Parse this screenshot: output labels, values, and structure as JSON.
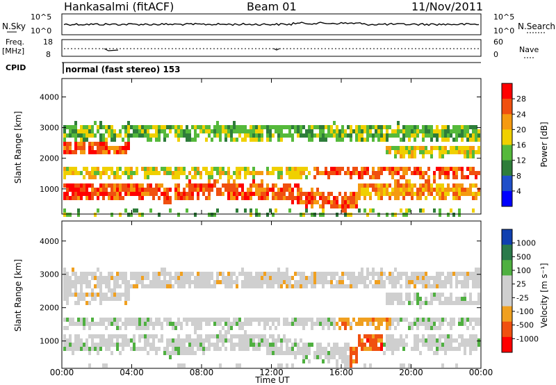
{
  "header": {
    "station": "Hankasalmi (fitACF)",
    "beam": "Beam 01",
    "date": "11/Nov/2011"
  },
  "strips": {
    "nsky": {
      "label": "N.Sky",
      "ticks": [
        "10^5",
        "10^0"
      ],
      "right_ticks": [
        "10^5",
        "10^0"
      ],
      "right_label": "N.Search"
    },
    "freq": {
      "label_line1": "Freq.",
      "label_line2": "[MHz]",
      "ticks": [
        "18",
        "8"
      ],
      "right_ticks": [
        "60",
        "0"
      ],
      "right_label": "Nave"
    },
    "cpid": {
      "label": "CPID",
      "text": "normal (fast stereo) 153"
    }
  },
  "chart_data": [
    {
      "type": "heatmap",
      "name": "power",
      "ylabel": "Slant Range [km]",
      "xlabel": "",
      "ylim": [
        180,
        4600
      ],
      "yticks": [
        "1000",
        "2000",
        "3000",
        "4000"
      ],
      "colorbar": {
        "label": "Power [dB]",
        "ticks": [
          "28",
          "24",
          "20",
          "16",
          "12",
          "8",
          "4"
        ],
        "colors": [
          "#0000ff",
          "#1f4fc9",
          "#2e7d3a",
          "#55b93b",
          "#f0d000",
          "#f59a10",
          "#f05010",
          "#ff0000"
        ]
      }
    },
    {
      "type": "heatmap",
      "name": "velocity",
      "ylabel": "Slant Range [km]",
      "xlabel": "Time UT",
      "ylim": [
        180,
        4600
      ],
      "yticks": [
        "1000",
        "2000",
        "3000",
        "4000"
      ],
      "xticks": [
        "00:00",
        "04:00",
        "08:00",
        "12:00",
        "16:00",
        "20:00",
        "00:00"
      ],
      "colorbar": {
        "label": "Velocity [m s⁻¹]",
        "ticks": [
          "1000",
          "500",
          "100",
          "25",
          "-25",
          "-100",
          "-500",
          "-1000"
        ],
        "colors": [
          "#1040b0",
          "#2a7a4a",
          "#4fb040",
          "#cfcfcf",
          "#cfcfcf",
          "#f0a020",
          "#f05010",
          "#ff0000"
        ]
      }
    }
  ]
}
